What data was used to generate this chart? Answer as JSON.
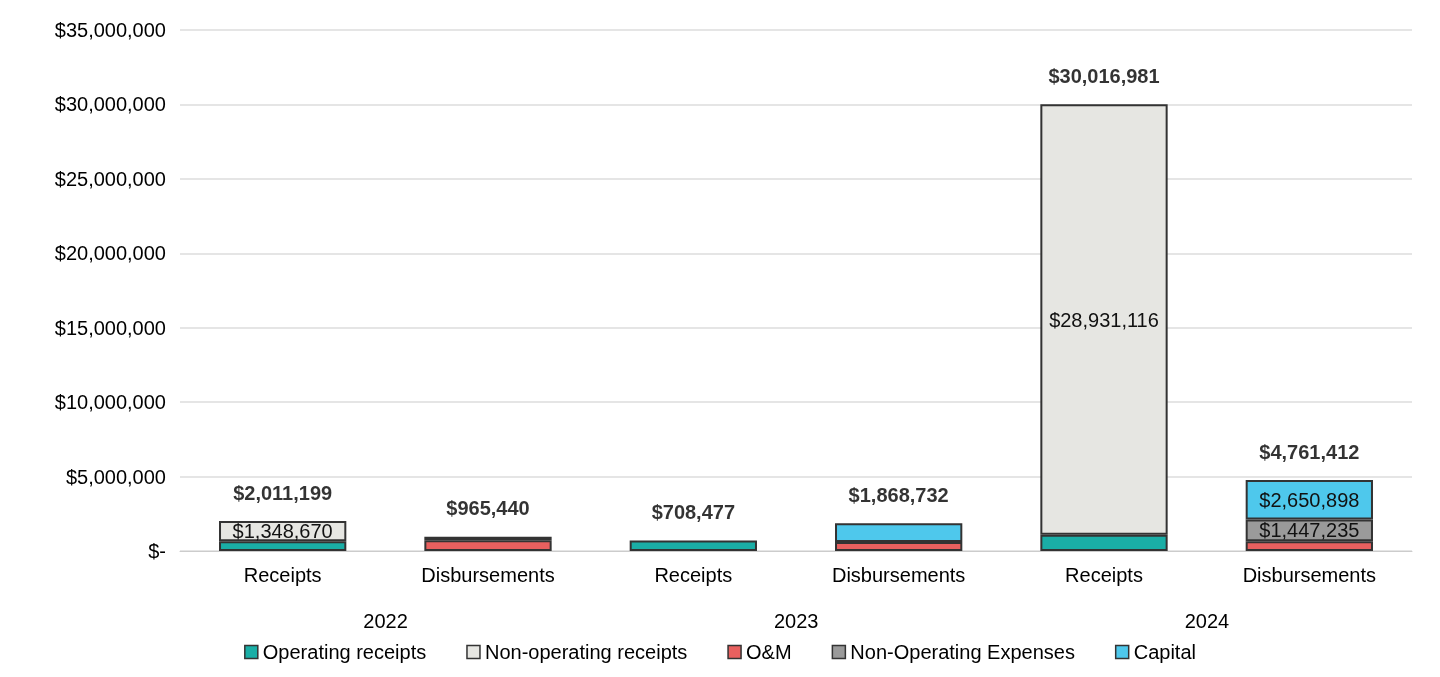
{
  "chart_data": {
    "type": "bar",
    "stacked": true,
    "categories": [
      "Receipts",
      "Disbursements",
      "Receipts",
      "Disbursements",
      "Receipts",
      "Disbursements"
    ],
    "series": [
      {
        "name": "Operating receipts",
        "color": "#1aaea6",
        "values": [
          662529,
          null,
          708477,
          null,
          1085865,
          null
        ],
        "value_labels": [
          null,
          null,
          null,
          null,
          null,
          null
        ]
      },
      {
        "name": "Non-operating receipts",
        "color": "#e6e6e2",
        "values": [
          1348670,
          null,
          null,
          null,
          28931116,
          null
        ],
        "value_labels": [
          "$1,348,670",
          null,
          null,
          null,
          "$28,931,116",
          null
        ]
      },
      {
        "name": "O&M",
        "color": "#e8605f",
        "values": [
          null,
          715440,
          null,
          600000,
          null,
          663279
        ],
        "value_labels": [
          null,
          null,
          null,
          null,
          null,
          null
        ]
      },
      {
        "name": "Non-Operating Expenses",
        "color": "#9a9a9a",
        "values": [
          null,
          null,
          null,
          null,
          null,
          1447235
        ],
        "value_labels": [
          null,
          null,
          null,
          null,
          null,
          "$1,447,235"
        ]
      },
      {
        "name": "Capital",
        "color": "#4ec8ec",
        "values": [
          null,
          250000,
          null,
          1268732,
          null,
          2650898
        ],
        "value_labels": [
          null,
          null,
          null,
          null,
          null,
          "$2,650,898"
        ]
      }
    ],
    "totals": [
      "$2,011,199",
      "$965,440",
      "$708,477",
      "$1,868,732",
      "$30,016,981",
      "$4,761,412"
    ],
    "annotations": [
      "2022",
      "2023",
      "2024"
    ],
    "ylim": [
      0,
      35000000
    ],
    "yticks": [
      {
        "value": 0,
        "label": "$-"
      },
      {
        "value": 5000000,
        "label": "$5,000,000"
      },
      {
        "value": 10000000,
        "label": "$10,000,000"
      },
      {
        "value": 15000000,
        "label": "$15,000,000"
      },
      {
        "value": 20000000,
        "label": "$20,000,000"
      },
      {
        "value": 25000000,
        "label": "$25,000,000"
      },
      {
        "value": 30000000,
        "label": "$30,000,000"
      },
      {
        "value": 35000000,
        "label": "$35,000,000"
      }
    ],
    "grid": "y",
    "legend": "bottom"
  }
}
